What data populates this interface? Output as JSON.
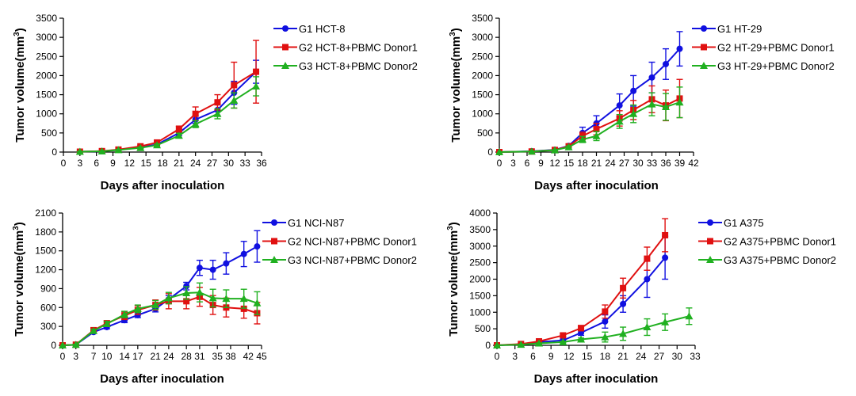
{
  "chart_data": [
    {
      "type": "line",
      "xlabel": "Days after inoculation",
      "ylabel": "Tumor volume(mm3)",
      "xlim": [
        0,
        36
      ],
      "ylim": [
        0,
        3500
      ],
      "xticks": [
        0,
        3,
        6,
        9,
        12,
        15,
        18,
        21,
        24,
        27,
        30,
        33,
        36
      ],
      "yticks": [
        0,
        500,
        1000,
        1500,
        2000,
        2500,
        3000,
        3500
      ],
      "legend_position": "right",
      "series": [
        {
          "name": "G1 HCT-8",
          "color": "#1010e0",
          "marker": "circle",
          "x": [
            3,
            7,
            10,
            14,
            17,
            21,
            24,
            28,
            31,
            35
          ],
          "y": [
            10,
            20,
            60,
            120,
            200,
            500,
            850,
            1100,
            1550,
            2100
          ],
          "err": [
            5,
            8,
            15,
            25,
            40,
            70,
            100,
            150,
            300,
            300
          ]
        },
        {
          "name": "G2 HCT-8+PBMC Donor1",
          "color": "#e01010",
          "marker": "square",
          "x": [
            3,
            7,
            10,
            14,
            17,
            21,
            24,
            28,
            31,
            35
          ],
          "y": [
            10,
            25,
            65,
            150,
            250,
            600,
            1000,
            1300,
            1750,
            2100
          ],
          "err": [
            5,
            8,
            15,
            30,
            40,
            80,
            180,
            200,
            600,
            820
          ]
        },
        {
          "name": "G3 HCT-8+PBMC Donor2",
          "color": "#20b020",
          "marker": "triangle",
          "x": [
            3,
            7,
            10,
            14,
            17,
            21,
            24,
            28,
            31,
            35
          ],
          "y": [
            10,
            20,
            55,
            110,
            180,
            430,
            730,
            1000,
            1350,
            1720
          ],
          "err": [
            5,
            8,
            12,
            20,
            30,
            60,
            90,
            130,
            200,
            250
          ]
        }
      ]
    },
    {
      "type": "line",
      "xlabel": "Days after inoculation",
      "ylabel": "Tumor volume(mm3)",
      "xlim": [
        0,
        42
      ],
      "ylim": [
        0,
        3500
      ],
      "xticks": [
        0,
        3,
        6,
        9,
        12,
        15,
        18,
        21,
        24,
        27,
        30,
        33,
        36,
        39,
        42
      ],
      "yticks": [
        0,
        500,
        1000,
        1500,
        2000,
        2500,
        3000,
        3500
      ],
      "legend_position": "right",
      "series": [
        {
          "name": "G1 HT-29",
          "color": "#1010e0",
          "marker": "circle",
          "x": [
            0,
            7,
            12,
            15,
            18,
            21,
            26,
            29,
            33,
            36,
            39
          ],
          "y": [
            0,
            20,
            60,
            160,
            500,
            750,
            1220,
            1600,
            1950,
            2300,
            2700
          ],
          "err": [
            0,
            5,
            15,
            40,
            150,
            200,
            300,
            400,
            400,
            400,
            450
          ]
        },
        {
          "name": "G2 HT-29+PBMC Donor1",
          "color": "#e01010",
          "marker": "square",
          "x": [
            0,
            7,
            12,
            15,
            18,
            21,
            26,
            29,
            33,
            36,
            39
          ],
          "y": [
            0,
            15,
            55,
            150,
            420,
            600,
            880,
            1100,
            1380,
            1220,
            1400
          ],
          "err": [
            0,
            5,
            15,
            35,
            100,
            150,
            200,
            250,
            350,
            400,
            500
          ]
        },
        {
          "name": "G3 HT-29+PBMC Donor2",
          "color": "#20b020",
          "marker": "triangle",
          "x": [
            0,
            7,
            12,
            15,
            18,
            21,
            26,
            29,
            33,
            36,
            39
          ],
          "y": [
            0,
            15,
            50,
            130,
            330,
            420,
            800,
            1000,
            1250,
            1180,
            1300
          ],
          "err": [
            0,
            5,
            12,
            30,
            80,
            120,
            180,
            230,
            300,
            350,
            400
          ]
        }
      ]
    },
    {
      "type": "line",
      "xlabel": "Days after inoculation",
      "ylabel": "Tumor volume(mm3)",
      "xlim": [
        0,
        45
      ],
      "ylim": [
        0,
        2100
      ],
      "xticks": [
        0,
        3,
        7,
        10,
        14,
        17,
        21,
        24,
        28,
        31,
        35,
        38,
        42,
        45
      ],
      "yticks": [
        0,
        300,
        600,
        900,
        1200,
        1500,
        1800,
        2100
      ],
      "legend_position": "right",
      "series": [
        {
          "name": "G1 NCI-N87",
          "color": "#1010e0",
          "marker": "circle",
          "x": [
            0,
            3,
            7,
            10,
            14,
            17,
            21,
            24,
            28,
            31,
            34,
            37,
            41,
            44
          ],
          "y": [
            0,
            10,
            210,
            290,
            400,
            480,
            580,
            730,
            940,
            1230,
            1200,
            1300,
            1450,
            1570
          ],
          "err": [
            0,
            5,
            20,
            30,
            40,
            40,
            50,
            60,
            60,
            120,
            150,
            170,
            200,
            250
          ]
        },
        {
          "name": "G2 NCI-N87+PBMC Donor1",
          "color": "#e01010",
          "marker": "square",
          "x": [
            0,
            3,
            7,
            10,
            14,
            17,
            21,
            24,
            28,
            31,
            34,
            37,
            41,
            44
          ],
          "y": [
            0,
            10,
            240,
            350,
            470,
            560,
            640,
            700,
            700,
            770,
            640,
            600,
            580,
            510
          ],
          "err": [
            0,
            5,
            30,
            40,
            60,
            70,
            80,
            120,
            120,
            150,
            150,
            150,
            150,
            170
          ]
        },
        {
          "name": "G3 NCI-N87+PBMC Donor2",
          "color": "#20b020",
          "marker": "triangle",
          "x": [
            0,
            3,
            7,
            10,
            14,
            17,
            21,
            24,
            28,
            31,
            34,
            37,
            41,
            44
          ],
          "y": [
            0,
            10,
            230,
            340,
            490,
            580,
            640,
            750,
            830,
            840,
            750,
            740,
            740,
            670
          ],
          "err": [
            0,
            5,
            25,
            40,
            50,
            60,
            70,
            90,
            100,
            150,
            140,
            140,
            150,
            180
          ]
        }
      ]
    },
    {
      "type": "line",
      "xlabel": "Days after inoculation",
      "ylabel": "Tumor volume(mm3)",
      "xlim": [
        0,
        33
      ],
      "ylim": [
        0,
        4000
      ],
      "xticks": [
        0,
        3,
        6,
        9,
        12,
        15,
        18,
        21,
        24,
        27,
        30,
        33
      ],
      "yticks": [
        0,
        500,
        1000,
        1500,
        2000,
        2500,
        3000,
        3500,
        4000
      ],
      "legend_position": "right",
      "series": [
        {
          "name": "G1 A375",
          "color": "#1010e0",
          "marker": "circle",
          "x": [
            0,
            4,
            7,
            11,
            14,
            18,
            21,
            25,
            28
          ],
          "y": [
            0,
            30,
            100,
            150,
            380,
            720,
            1250,
            2000,
            2650
          ],
          "err": [
            0,
            10,
            20,
            30,
            80,
            200,
            250,
            550,
            650
          ]
        },
        {
          "name": "G2 A375+PBMC Donor1",
          "color": "#e01010",
          "marker": "square",
          "x": [
            0,
            4,
            7,
            11,
            14,
            18,
            21,
            25,
            28
          ],
          "y": [
            0,
            40,
            120,
            300,
            520,
            1020,
            1730,
            2620,
            3330
          ],
          "err": [
            0,
            10,
            20,
            50,
            80,
            200,
            300,
            350,
            500
          ]
        },
        {
          "name": "G3 A375+PBMC Donor2",
          "color": "#20b020",
          "marker": "triangle",
          "x": [
            0,
            4,
            7,
            11,
            14,
            18,
            21,
            25,
            28,
            32
          ],
          "y": [
            0,
            20,
            60,
            100,
            180,
            250,
            350,
            550,
            700,
            880
          ],
          "err": [
            0,
            5,
            10,
            20,
            40,
            150,
            200,
            250,
            250,
            250
          ]
        }
      ]
    }
  ]
}
